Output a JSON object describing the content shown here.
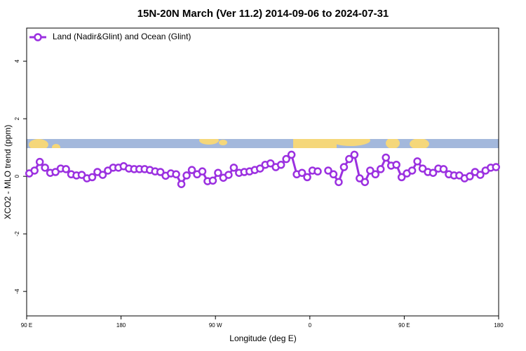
{
  "chart_data": {
    "type": "line",
    "title": "15N-20N March (Ver 11.2)   2014-09-06 to 2024-07-31",
    "x_label": "Longitude (deg E)",
    "y_label": "XCO2 - MLO trend (ppm)",
    "xlim": [
      90,
      540
    ],
    "xticks": [
      {
        "value": 90,
        "label": "90 E"
      },
      180,
      {
        "value": 270,
        "label": "90 W"
      },
      {
        "value": 360,
        "label": "0"
      },
      {
        "value": 450,
        "label": "90 E"
      },
      {
        "value": 540,
        "label": "180"
      }
    ],
    "ylim": [
      -4.85,
      5.15
    ],
    "yticks": [
      -4,
      -2,
      0,
      2,
      4
    ],
    "x": [
      92.5,
      97.5,
      102.5,
      107.5,
      112.5,
      117.5,
      122.5,
      127.5,
      132.5,
      137.5,
      142.5,
      147.5,
      152.5,
      157.5,
      162.5,
      167.5,
      172.5,
      177.5,
      182.5,
      187.5,
      192.5,
      197.5,
      202.5,
      207.5,
      212.5,
      217.5,
      222.5,
      227.5,
      232.5,
      237.5,
      242.5,
      247.5,
      252.5,
      257.5,
      262.5,
      267.5,
      272.5,
      277.5,
      282.5,
      287.5,
      292.5,
      297.5,
      302.5,
      307.5,
      312.5,
      317.5,
      322.5,
      327.5,
      332.5,
      337.5,
      342.5,
      347.5,
      352.5,
      357.5,
      362.5,
      367.5,
      372.5,
      377.5,
      382.5,
      387.5,
      392.5,
      397.5,
      402.5,
      407.5,
      412.5,
      417.5,
      422.5,
      427.5,
      432.5,
      437.5,
      442.5,
      447.5,
      452.5,
      457.5,
      462.5,
      467.5,
      472.5,
      477.5,
      482.5,
      487.5,
      492.5,
      497.5,
      502.5,
      507.5,
      512.5,
      517.5,
      522.5,
      527.5,
      532.5,
      537.5
    ],
    "series": [
      {
        "name": "Land (Nadir&Glint) and Ocean (Glint)",
        "color": "#9b30e0",
        "values": [
          0.1,
          0.2,
          0.5,
          0.3,
          0.12,
          0.15,
          0.27,
          0.25,
          0.07,
          0.03,
          0.05,
          -0.07,
          -0.03,
          0.15,
          0.05,
          0.2,
          0.3,
          0.3,
          0.35,
          0.27,
          0.25,
          0.25,
          0.25,
          0.22,
          0.17,
          0.15,
          0.02,
          0.1,
          0.07,
          -0.27,
          0.03,
          0.22,
          0.07,
          0.17,
          -0.17,
          -0.15,
          0.12,
          -0.05,
          0.05,
          0.3,
          0.12,
          0.15,
          0.17,
          0.22,
          0.27,
          0.4,
          0.45,
          0.32,
          0.4,
          0.6,
          0.75,
          0.07,
          0.12,
          -0.03,
          0.2,
          0.17,
          null,
          0.2,
          0.07,
          -0.2,
          0.32,
          0.6,
          0.75,
          -0.07,
          -0.2,
          0.2,
          0.07,
          0.25,
          0.65,
          0.37,
          0.4,
          -0.03,
          0.1,
          0.2,
          0.52,
          0.27,
          0.15,
          0.12,
          0.27,
          0.25,
          0.07,
          0.03,
          0.03,
          -0.07,
          0,
          0.15,
          0.05,
          0.2,
          0.3,
          0.32
        ]
      }
    ]
  }
}
